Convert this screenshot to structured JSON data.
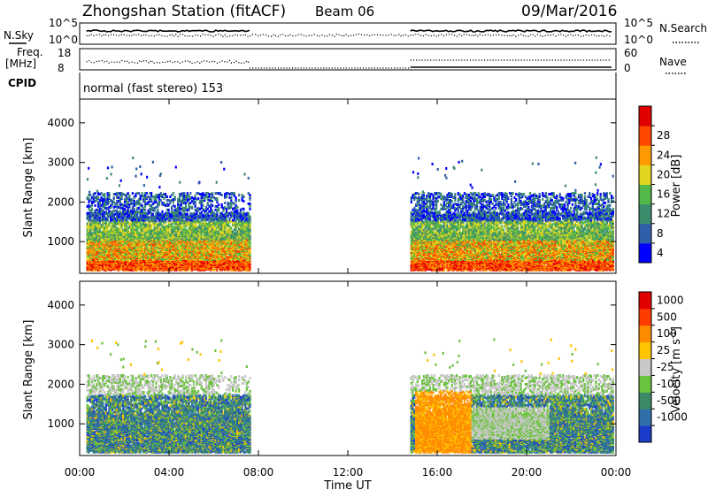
{
  "header": {
    "station": "Zhongshan Station (fitACF)",
    "beam": "Beam 06",
    "date": "09/Mar/2016",
    "cpid_text": "normal (fast stereo) 153"
  },
  "top_panels": {
    "nsky_label": "N.Sky",
    "nsky_ticks": [
      "10^5",
      "10^0"
    ],
    "nsearch_label": "N.Search",
    "nsearch_ticks": [
      "10^5",
      "10^0"
    ],
    "freq_label_1": "Freq.",
    "freq_label_2": "[MHz]",
    "freq_ticks": [
      "18",
      "8"
    ],
    "nave_label": "Nave",
    "nave_ticks": [
      "60",
      "0"
    ],
    "cpid_label": "CPID"
  },
  "chart_data": [
    {
      "type": "heatmap",
      "panel": "power",
      "ylabel": "Slant Range [km]",
      "yticks": [
        "1000",
        "2000",
        "3000",
        "4000"
      ],
      "ylim": [
        200,
        4600
      ],
      "xlabel": "Time UT",
      "xticks": [
        "00:00",
        "04:00",
        "08:00",
        "12:00",
        "16:00",
        "20:00",
        "00:00"
      ],
      "xlim_hours": [
        0,
        24
      ],
      "colorbar_label": "Power [dB]",
      "colorbar_ticks": [
        "4",
        "8",
        "12",
        "16",
        "20",
        "24",
        "28"
      ],
      "colors": [
        "#0000ff",
        "#2f5fa8",
        "#3c8c6e",
        "#52b84a",
        "#e3d51f",
        "#ff9a00",
        "#ff4800",
        "#e10000"
      ],
      "data_segments_hours": [
        [
          0.3,
          7.6
        ],
        [
          14.8,
          23.9
        ]
      ]
    },
    {
      "type": "heatmap",
      "panel": "velocity",
      "ylabel": "Slant Range [km]",
      "yticks": [
        "1000",
        "2000",
        "3000",
        "4000"
      ],
      "ylim": [
        200,
        4600
      ],
      "xlabel": "Time UT",
      "xticks": [
        "00:00",
        "04:00",
        "08:00",
        "12:00",
        "16:00",
        "20:00",
        "00:00"
      ],
      "xlim_hours": [
        0,
        24
      ],
      "colorbar_label": "Velocity [m s^-1]",
      "colorbar_ticks": [
        "1000",
        "500",
        "100",
        "25",
        "-25",
        "-100",
        "-500",
        "-1000"
      ],
      "colors": [
        "#1a3cc8",
        "#2f6faa",
        "#3b8a66",
        "#6cc33f",
        "#c8c8c8",
        "#ffc400",
        "#ff8c00",
        "#ff3c00",
        "#e00000"
      ],
      "data_segments_hours": [
        [
          0.3,
          7.6
        ],
        [
          14.8,
          23.9
        ]
      ]
    }
  ]
}
